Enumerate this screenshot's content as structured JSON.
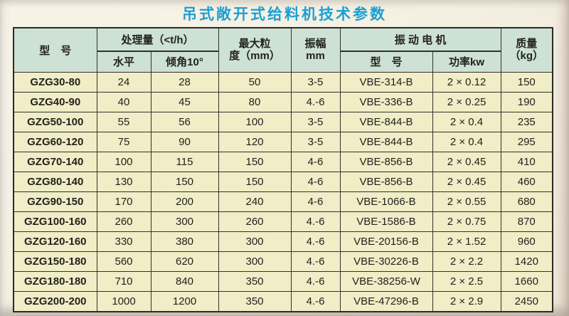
{
  "title": "吊式敞开式给料机技术参数",
  "colors": {
    "title_text": "#1d9fd2",
    "header_bg": "#cde1d4",
    "row_bg": "#f0edc7",
    "border": "#33312a",
    "page_bg": "#f3efe1"
  },
  "table": {
    "header": {
      "model": "型　号",
      "capacity_group": "处理量（<t/h）",
      "capacity_horizontal": "水平",
      "capacity_incline": "倾角10°",
      "max_particle_line1": "最大粒",
      "max_particle_line2": "度（mm）",
      "amplitude_line1": "振幅",
      "amplitude_line2": "mm",
      "motor_group": "振 动 电 机",
      "motor_model": "型　号",
      "motor_power": "功率kw",
      "mass_line1": "质量",
      "mass_line2": "（kg）"
    },
    "rows": [
      {
        "model": "GZG30-80",
        "horizontal": "24",
        "incline": "28",
        "max_particle": "50",
        "amplitude": "3-5",
        "motor_model": "VBE-314-B",
        "power": "2 × 0.12",
        "mass": "150"
      },
      {
        "model": "GZG40-90",
        "horizontal": "40",
        "incline": "45",
        "max_particle": "80",
        "amplitude": "4.-6",
        "motor_model": "VBE-336-B",
        "power": "2 × 0.25",
        "mass": "190"
      },
      {
        "model": "GZG50-100",
        "horizontal": "55",
        "incline": "56",
        "max_particle": "100",
        "amplitude": "3-5",
        "motor_model": "VBE-844-B",
        "power": "2 × 0.4",
        "mass": "235"
      },
      {
        "model": "GZG60-120",
        "horizontal": "75",
        "incline": "90",
        "max_particle": "120",
        "amplitude": "3-5",
        "motor_model": "VBE-844-B",
        "power": "2 × 0.4",
        "mass": "295"
      },
      {
        "model": "GZG70-140",
        "horizontal": "100",
        "incline": "115",
        "max_particle": "150",
        "amplitude": "4-6",
        "motor_model": "VBE-856-B",
        "power": "2 × 0.45",
        "mass": "410"
      },
      {
        "model": "GZG80-140",
        "horizontal": "130",
        "incline": "150",
        "max_particle": "150",
        "amplitude": "4-6",
        "motor_model": "VBE-856-B",
        "power": "2 × 0.45",
        "mass": "460"
      },
      {
        "model": "GZG90-150",
        "horizontal": "170",
        "incline": "200",
        "max_particle": "240",
        "amplitude": "4-6",
        "motor_model": "VBE-1066-B",
        "power": "2 × 0.55",
        "mass": "680"
      },
      {
        "model": "GZG100-160",
        "horizontal": "260",
        "incline": "300",
        "max_particle": "260",
        "amplitude": "4.-6",
        "motor_model": "VBE-1586-B",
        "power": "2 × 0.75",
        "mass": "870"
      },
      {
        "model": "GZG120-160",
        "horizontal": "330",
        "incline": "380",
        "max_particle": "300",
        "amplitude": "4.-6",
        "motor_model": "VBE-20156-B",
        "power": "2 × 1.52",
        "mass": "960"
      },
      {
        "model": "GZG150-180",
        "horizontal": "560",
        "incline": "620",
        "max_particle": "300",
        "amplitude": "4.-6",
        "motor_model": "VBE-30226-B",
        "power": "2 × 2.2",
        "mass": "1420"
      },
      {
        "model": "GZG180-180",
        "horizontal": "710",
        "incline": "840",
        "max_particle": "350",
        "amplitude": "4.-6",
        "motor_model": "VBE-38256-W",
        "power": "2 × 2.5",
        "mass": "1660"
      },
      {
        "model": "GZG200-200",
        "horizontal": "1000",
        "incline": "1200",
        "max_particle": "350",
        "amplitude": "4.-6",
        "motor_model": "VBE-47296-B",
        "power": "2 × 2.9",
        "mass": "2450"
      }
    ]
  }
}
